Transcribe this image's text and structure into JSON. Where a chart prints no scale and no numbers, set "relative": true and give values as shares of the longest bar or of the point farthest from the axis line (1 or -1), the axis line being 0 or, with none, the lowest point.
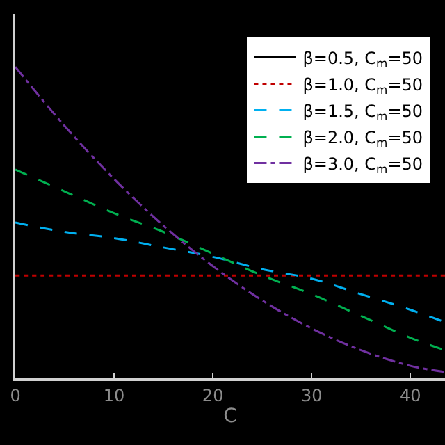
{
  "chart_data": {
    "type": "line",
    "relative": true,
    "xlabel": "C",
    "x": [
      0,
      5,
      10,
      15,
      20,
      25,
      30,
      35,
      40,
      43.5
    ],
    "xlim": [
      0,
      43.5
    ],
    "xticks": [
      0,
      10,
      20,
      30,
      40
    ],
    "grid": false,
    "legend": "top right",
    "marker": "none",
    "series": [
      {
        "name": "β=0.5, C$_{m}$=50",
        "color": "#000000",
        "line_style": "solid",
        "values": [
          null,
          null,
          null,
          null,
          null,
          null,
          null,
          null,
          null,
          null
        ]
      },
      {
        "name": "β=1.0, C$_{m}$=50",
        "color": "#c00000",
        "line_style": "dotted",
        "values": [
          0.33,
          0.33,
          0.33,
          0.33,
          0.33,
          0.33,
          0.33,
          0.33,
          0.33,
          0.33
        ]
      },
      {
        "name": "β=1.5, C$_{m}$=50",
        "color": "#00b0f0",
        "line_style": "dashed",
        "values": [
          0.5,
          0.47,
          0.45,
          0.42,
          0.39,
          0.35,
          0.32,
          0.27,
          0.22,
          0.18
        ]
      },
      {
        "name": "β=2.0, C$_{m}$=50",
        "color": "#00b050",
        "line_style": "dashed",
        "values": [
          0.67,
          0.6,
          0.53,
          0.47,
          0.4,
          0.33,
          0.27,
          0.2,
          0.13,
          0.09
        ]
      },
      {
        "name": "β=3.0, C$_{m}$=50",
        "color": "#7030a0",
        "line_style": "dashdot",
        "values": [
          1.0,
          0.81,
          0.64,
          0.49,
          0.36,
          0.25,
          0.16,
          0.09,
          0.04,
          0.02
        ]
      }
    ]
  }
}
